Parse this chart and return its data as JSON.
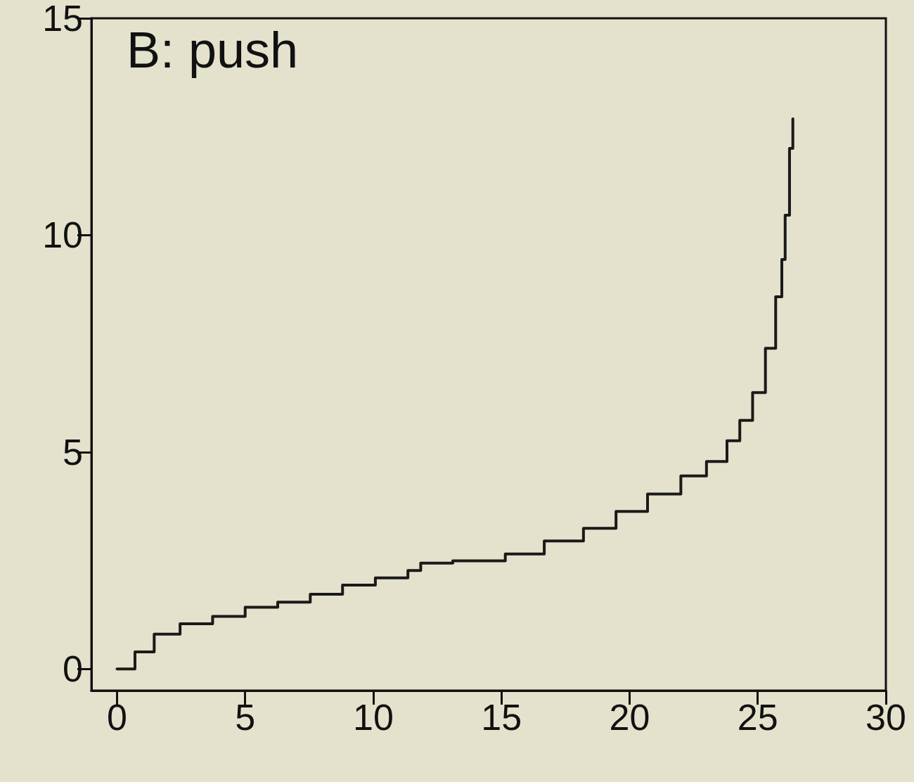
{
  "chart_data": {
    "type": "step",
    "title": "B: push",
    "x": [
      0,
      0.7,
      1.45,
      2.46,
      3.73,
      5,
      6.27,
      7.54,
      8.8,
      10.08,
      11.35,
      11.85,
      13.1,
      15.15,
      16.67,
      18.2,
      19.47,
      20.7,
      22,
      23,
      23.8,
      24.3,
      24.8,
      25.3,
      25.7,
      25.94,
      26.07,
      26.24,
      26.37
    ],
    "series": [
      {
        "color": "#1a1a1a",
        "values": [
          0,
          0.39,
          0.8,
          1.04,
          1.21,
          1.42,
          1.54,
          1.72,
          1.93,
          2.1,
          2.27,
          2.44,
          2.49,
          2.65,
          2.95,
          3.24,
          3.63,
          4.03,
          4.45,
          4.78,
          5.26,
          5.73,
          6.37,
          7.39,
          8.58,
          9.44,
          10.46,
          12.0,
          12.68
        ]
      }
    ],
    "xlim": [
      -1,
      30
    ],
    "xticks": [
      0,
      5,
      10,
      15,
      20,
      25,
      30
    ],
    "ylim": [
      -0.5,
      15
    ],
    "yticks": [
      0,
      5,
      10,
      15
    ],
    "marker": "none",
    "line_style": "solid"
  }
}
